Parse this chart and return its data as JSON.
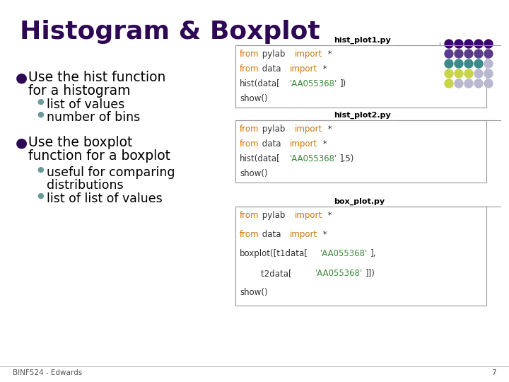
{
  "title": "Histogram & Boxplot",
  "bg_color": "#ffffff",
  "title_color": "#2E0854",
  "title_fontsize": 26,
  "bullet_color": "#2E0854",
  "sub_bullet_color": "#6a9a9a",
  "body_text_color": "#000000",
  "body_fontsize": 13.5,
  "sub_fontsize": 12.5,
  "footer_text": "BINF524 - Edwards",
  "footer_page": "7",
  "code_keyword_color": "#cc7700",
  "code_string_color": "#3a8a3a",
  "code_text_color": "#333333",
  "code_fontsize": 8.5,
  "dot_colors": [
    [
      "#3d006e",
      "#3d006e",
      "#3d006e",
      "#3d006e",
      "#3d006e"
    ],
    [
      "#5a3a8a",
      "#5a3a8a",
      "#5a3a8a",
      "#5a3a8a",
      "#5a3a8a"
    ],
    [
      "#3a8a8a",
      "#3a8a8a",
      "#3a8a8a",
      "#3a8a8a",
      "#b8b8d0"
    ],
    [
      "#c8d44a",
      "#c8d44a",
      "#c8d44a",
      "#b8b8d0",
      "#b8b8d0"
    ],
    [
      "#c8d44a",
      "#b8b8d0",
      "#b8b8d0",
      "#b8b8d0",
      "#b8b8d0"
    ]
  ],
  "code_boxes": [
    {
      "label": "hist_plot1.py",
      "code_lines": [
        "from pylab import *",
        "from data import *",
        "hist(data['AA055368'])",
        "show()"
      ],
      "keyword_words": [
        "from",
        "import",
        "from",
        "import"
      ],
      "string_words": [
        "'AA055368'"
      ]
    },
    {
      "label": "hist_plot2.py",
      "code_lines": [
        "from pylab import *",
        "from data import *",
        "hist(data['AA055368'],5)",
        "show()"
      ],
      "keyword_words": [
        "from",
        "import",
        "from",
        "import"
      ],
      "string_words": [
        "'AA055368'"
      ]
    },
    {
      "label": "box_plot.py",
      "code_lines": [
        "from pylab import *",
        "from data import *",
        "boxplot([t1data['AA055368'],",
        "        t2data['AA055368']])",
        "show()"
      ],
      "keyword_words": [
        "from",
        "import",
        "from",
        "import"
      ],
      "string_words": [
        "'AA055368'",
        "'AA055368'"
      ]
    }
  ]
}
